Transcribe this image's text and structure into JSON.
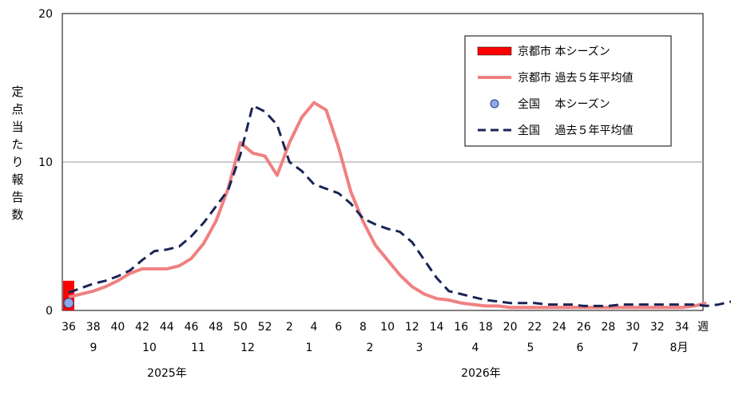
{
  "chart_data": {
    "type": "line",
    "ylabel": "定点当たり報告数",
    "ylim": [
      0,
      20
    ],
    "y_ticks": [
      "0",
      "10",
      "20"
    ],
    "grid": "horizontal at 10",
    "x_week_labels": [
      "36",
      "38",
      "40",
      "42",
      "44",
      "46",
      "48",
      "50",
      "52",
      "2",
      "4",
      "6",
      "8",
      "10",
      "12",
      "14",
      "16",
      "18",
      "20",
      "22",
      "24",
      "26",
      "28",
      "30",
      "32",
      "34"
    ],
    "x_unit_label": "週",
    "x_month_labels": [
      "9",
      "10",
      "11",
      "12",
      "1",
      "2",
      "3",
      "4",
      "5",
      "6",
      "7",
      "8月"
    ],
    "x_year_labels": [
      "2025年",
      "2026年"
    ],
    "legend_position": "top-right",
    "legend": {
      "kyoto_current": "京都市 本シーズン",
      "kyoto_avg": "京都市 過去５年平均値",
      "national_current": "全国　 本シーズン",
      "national_avg": "全国　 過去５年平均値"
    },
    "colors": {
      "kyoto_current": "#ff0000",
      "kyoto_avg": "#f08080",
      "national_current": "#8fa8e8",
      "national_avg": "#1a2456"
    },
    "series": [
      {
        "name": "京都市 本シーズン",
        "style": "bar",
        "values": [
          2.0
        ]
      },
      {
        "name": "京都市 過去５年平均値",
        "style": "line",
        "values": [
          0.9,
          1.1,
          1.3,
          1.6,
          2.0,
          2.5,
          2.8,
          2.8,
          2.8,
          3.0,
          3.5,
          4.5,
          6.0,
          8.2,
          11.3,
          10.6,
          10.4,
          9.1,
          11.3,
          13.0,
          14.0,
          13.5,
          11.0,
          8.0,
          6.0,
          4.4,
          3.4,
          2.4,
          1.6,
          1.1,
          0.8,
          0.7,
          0.5,
          0.4,
          0.3,
          0.3,
          0.2,
          0.2,
          0.2,
          0.2,
          0.2,
          0.2,
          0.2,
          0.2,
          0.2,
          0.2,
          0.2,
          0.2,
          0.2,
          0.2,
          0.2,
          0.3,
          0.5
        ]
      },
      {
        "name": "全国　 本シーズン",
        "style": "point",
        "values": [
          0.5
        ]
      },
      {
        "name": "全国　 過去５年平均値",
        "style": "dashed",
        "values": [
          1.2,
          1.5,
          1.8,
          2.0,
          2.3,
          2.7,
          3.4,
          4.0,
          4.1,
          4.3,
          5.0,
          5.9,
          7.0,
          8.1,
          10.5,
          13.8,
          13.4,
          12.5,
          10.0,
          9.4,
          8.5,
          8.2,
          7.9,
          7.2,
          6.2,
          5.8,
          5.5,
          5.3,
          4.6,
          3.4,
          2.2,
          1.3,
          1.1,
          0.9,
          0.7,
          0.6,
          0.5,
          0.5,
          0.5,
          0.4,
          0.4,
          0.4,
          0.3,
          0.3,
          0.3,
          0.4,
          0.4,
          0.4,
          0.4,
          0.4,
          0.4,
          0.4,
          0.3,
          0.4,
          0.6
        ]
      }
    ]
  }
}
